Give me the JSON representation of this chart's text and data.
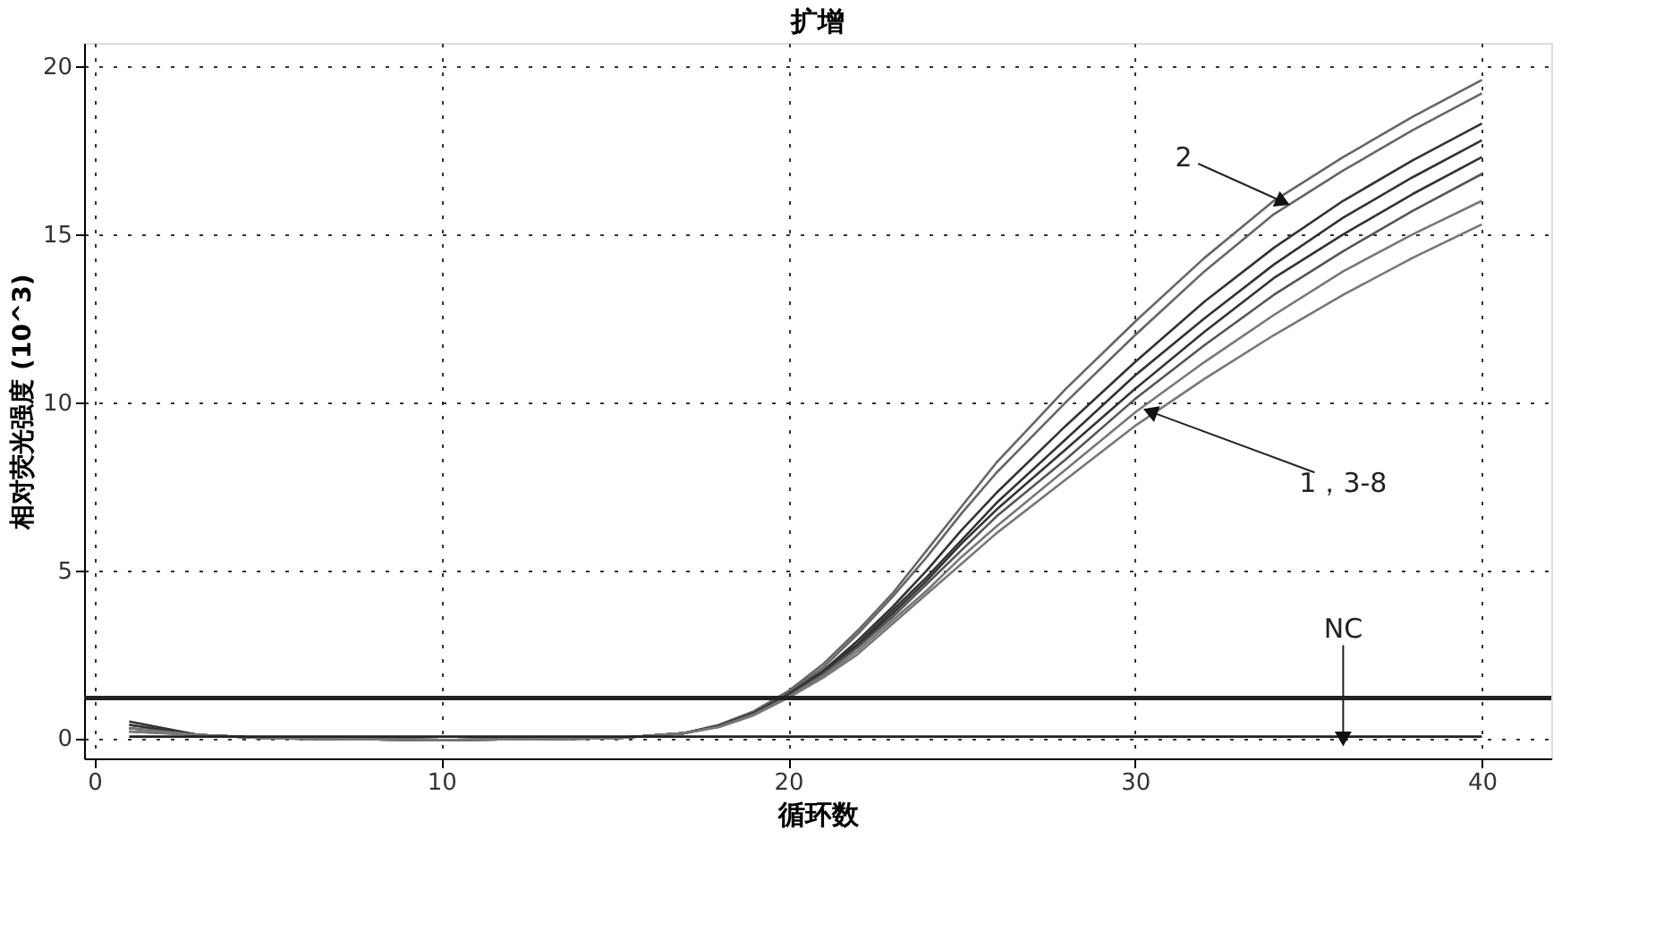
{
  "chart_data": {
    "type": "line",
    "title": "扩增",
    "xlabel": "循环数",
    "ylabel": "相对荧光强度 (10^3)",
    "xlim": [
      -0.3,
      42
    ],
    "ylim": [
      -0.6,
      20.7
    ],
    "xticks": [
      0,
      10,
      20,
      30,
      40
    ],
    "yticks": [
      0,
      5,
      10,
      15,
      20
    ],
    "grid": true,
    "legend": false,
    "marker": "none",
    "line_style": "solid",
    "x": [
      1,
      3,
      5,
      10,
      15,
      17,
      18,
      19,
      20,
      21,
      22,
      23,
      24,
      25,
      26,
      28,
      30,
      32,
      34,
      36,
      38,
      40
    ],
    "series": [
      {
        "color": "#666666",
        "values": [
          0.4,
          0.1,
          0.0,
          -0.05,
          0.0,
          0.15,
          0.4,
          0.8,
          1.4,
          2.2,
          3.2,
          4.3,
          5.6,
          6.9,
          8.2,
          10.4,
          12.4,
          14.3,
          16.0,
          17.3,
          18.5,
          19.6
        ]
      },
      {
        "color": "#666666",
        "values": [
          0.3,
          0.1,
          0.0,
          -0.05,
          0.0,
          0.15,
          0.38,
          0.78,
          1.35,
          2.1,
          3.1,
          4.2,
          5.4,
          6.7,
          7.9,
          10.0,
          12.0,
          13.9,
          15.6,
          16.9,
          18.1,
          19.2
        ]
      },
      {
        "color": "#333333",
        "values": [
          0.5,
          0.1,
          0.0,
          -0.05,
          0.0,
          0.15,
          0.37,
          0.75,
          1.3,
          2.0,
          2.9,
          3.9,
          5.0,
          6.2,
          7.3,
          9.3,
          11.2,
          13.0,
          14.6,
          16.0,
          17.2,
          18.3
        ]
      },
      {
        "color": "#333333",
        "values": [
          0.4,
          0.1,
          0.0,
          -0.05,
          0.0,
          0.15,
          0.36,
          0.74,
          1.3,
          2.0,
          2.8,
          3.8,
          4.8,
          5.9,
          7.0,
          8.9,
          10.8,
          12.5,
          14.1,
          15.5,
          16.7,
          17.8
        ]
      },
      {
        "color": "#333333",
        "values": [
          0.3,
          0.1,
          0.0,
          -0.05,
          0.0,
          0.15,
          0.35,
          0.73,
          1.28,
          1.95,
          2.75,
          3.7,
          4.7,
          5.8,
          6.8,
          8.6,
          10.4,
          12.1,
          13.7,
          15.0,
          16.2,
          17.3
        ]
      },
      {
        "color": "#555555",
        "values": [
          0.2,
          0.1,
          0.0,
          -0.05,
          0.0,
          0.15,
          0.35,
          0.72,
          1.25,
          1.9,
          2.7,
          3.6,
          4.6,
          5.6,
          6.6,
          8.3,
          10.1,
          11.7,
          13.2,
          14.5,
          15.7,
          16.8
        ]
      },
      {
        "color": "#777777",
        "values": [
          0.3,
          0.1,
          0.0,
          -0.05,
          0.0,
          0.15,
          0.34,
          0.7,
          1.22,
          1.85,
          2.6,
          3.5,
          4.4,
          5.4,
          6.3,
          8.0,
          9.7,
          11.2,
          12.6,
          13.9,
          15.0,
          16.0
        ]
      },
      {
        "color": "#777777",
        "values": [
          0.2,
          0.1,
          0.0,
          -0.05,
          0.0,
          0.15,
          0.33,
          0.68,
          1.2,
          1.8,
          2.5,
          3.4,
          4.3,
          5.2,
          6.1,
          7.7,
          9.3,
          10.7,
          12.0,
          13.2,
          14.3,
          15.3
        ]
      },
      {
        "color": "#222222",
        "x": [
          1,
          40
        ],
        "values": [
          0.05,
          0.05
        ]
      }
    ],
    "ref_lines": [
      {
        "axis": "y",
        "value": 1.2,
        "color": "#222222"
      }
    ],
    "annotations": [
      {
        "text": "2",
        "x": 34.2,
        "y": 16.0
      },
      {
        "text": "1，3-8",
        "x": 30.5,
        "y": 9.7
      },
      {
        "text": "NC",
        "x": 36,
        "y": 0.05
      }
    ]
  }
}
